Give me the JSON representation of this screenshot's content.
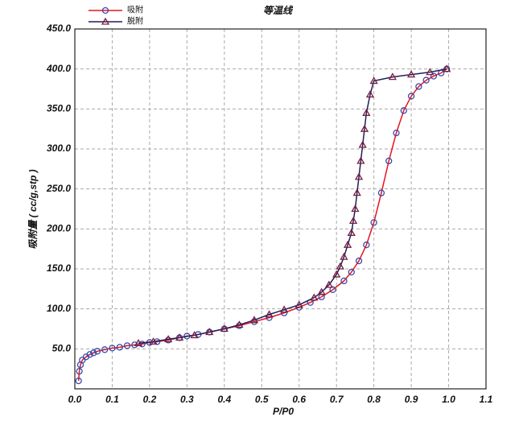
{
  "chart_data": {
    "type": "line",
    "title": "等温线",
    "xlabel": "P/P0",
    "ylabel": "吸附量 ( cc/g,stp )",
    "xlim": [
      0,
      1.1
    ],
    "ylim": [
      0,
      450
    ],
    "xticks": [
      {
        "value": 0,
        "label": "0.0"
      },
      0.1,
      0.2,
      0.3,
      0.4,
      0.5,
      0.6,
      0.7,
      0.8,
      0.9,
      {
        "value": 1,
        "label": "1.0"
      },
      1.1
    ],
    "yticks": [
      {
        "value": 50,
        "label": "50.0"
      },
      {
        "value": 100,
        "label": "100.0"
      },
      {
        "value": 150,
        "label": "150.0"
      },
      {
        "value": 200,
        "label": "200.0"
      },
      {
        "value": 250,
        "label": "250.0"
      },
      {
        "value": 300,
        "label": "300.0"
      },
      {
        "value": 350,
        "label": "350.0"
      },
      {
        "value": 400,
        "label": "400.0"
      },
      {
        "value": 450,
        "label": "450.0"
      }
    ],
    "grid": true,
    "series": [
      {
        "name": "吸附",
        "color": "#e8141e",
        "marker": "circle",
        "marker_color": "#3a4aa8",
        "x": [
          0.01,
          0.012,
          0.015,
          0.02,
          0.03,
          0.04,
          0.05,
          0.06,
          0.08,
          0.1,
          0.12,
          0.14,
          0.16,
          0.18,
          0.2,
          0.22,
          0.25,
          0.28,
          0.3,
          0.33,
          0.36,
          0.4,
          0.44,
          0.48,
          0.52,
          0.56,
          0.6,
          0.63,
          0.66,
          0.69,
          0.72,
          0.74,
          0.76,
          0.78,
          0.8,
          0.82,
          0.84,
          0.86,
          0.88,
          0.9,
          0.92,
          0.94,
          0.96,
          0.98,
          0.995
        ],
        "values": [
          10,
          22,
          30,
          36,
          40,
          43,
          45,
          47,
          49,
          51,
          52,
          54,
          55,
          56,
          58,
          59,
          61,
          64,
          66,
          68,
          71,
          75,
          79,
          84,
          89,
          95,
          102,
          108,
          115,
          124,
          135,
          146,
          160,
          180,
          208,
          245,
          285,
          320,
          348,
          366,
          378,
          386,
          391,
          395,
          400
        ]
      },
      {
        "name": "脱附",
        "color": "#1f1f5f",
        "marker": "triangle",
        "marker_color": "#7a1c3c",
        "x": [
          0.995,
          0.95,
          0.9,
          0.85,
          0.8,
          0.79,
          0.78,
          0.775,
          0.77,
          0.765,
          0.76,
          0.755,
          0.75,
          0.745,
          0.74,
          0.73,
          0.72,
          0.71,
          0.7,
          0.68,
          0.66,
          0.64,
          0.6,
          0.56,
          0.52,
          0.48,
          0.44,
          0.4,
          0.36,
          0.32,
          0.28,
          0.25,
          0.21,
          0.17
        ],
        "values": [
          400,
          396,
          393,
          390,
          385,
          368,
          345,
          325,
          305,
          285,
          265,
          245,
          225,
          210,
          195,
          180,
          165,
          153,
          143,
          130,
          121,
          114,
          105,
          99,
          93,
          86,
          80,
          75,
          71,
          67,
          64,
          62,
          59,
          57
        ]
      }
    ]
  }
}
